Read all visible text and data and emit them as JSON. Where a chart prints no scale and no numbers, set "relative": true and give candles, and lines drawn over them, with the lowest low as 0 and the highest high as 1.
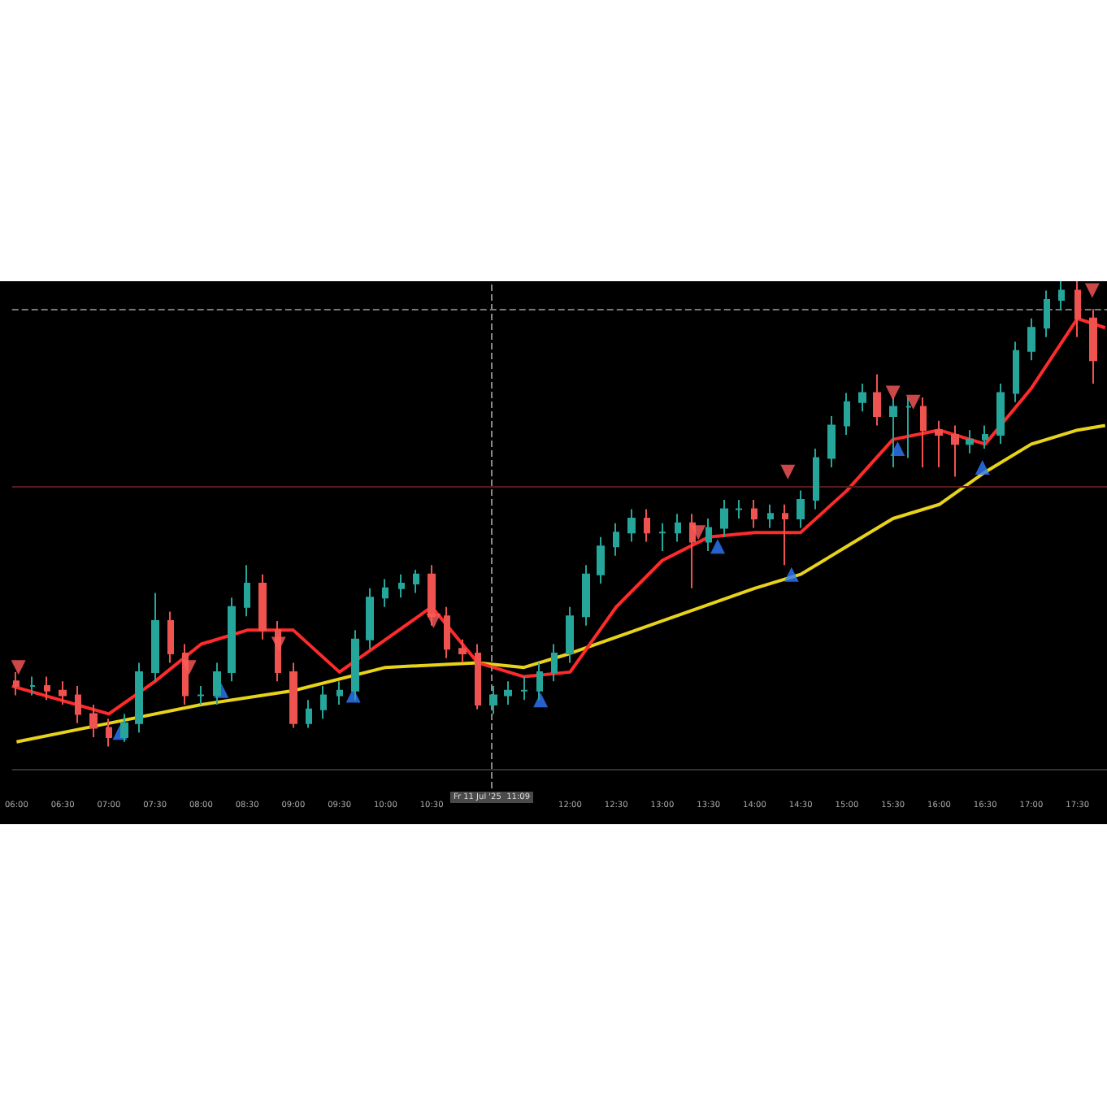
{
  "chart_data": {
    "type": "candlestick",
    "relative": true,
    "grid": false,
    "x": [
      6,
      6.17,
      6.33,
      6.5,
      6.67,
      6.83,
      7,
      7.17,
      7.33,
      7.5,
      7.67,
      7.83,
      8,
      8.17,
      8.33,
      8.5,
      8.67,
      8.83,
      9,
      9.17,
      9.33,
      9.5,
      9.67,
      9.83,
      10,
      10.17,
      10.33,
      10.5,
      10.67,
      10.83,
      11,
      11.17,
      11.33,
      11.5,
      11.67,
      11.83,
      12,
      12.17,
      12.33,
      12.5,
      12.67,
      12.83,
      13,
      13.17,
      13.33,
      13.5,
      13.67,
      13.83,
      14,
      14.17,
      14.33,
      14.5,
      14.67,
      14.83,
      15,
      15.17,
      15.33,
      15.5,
      15.67,
      15.83,
      16,
      16.17,
      16.33,
      16.5,
      16.67,
      16.83,
      17,
      17.17,
      17.33,
      17.5,
      17.67
    ],
    "ohlc": [
      [
        0.14,
        0.16,
        0.11,
        0.13
      ],
      [
        0.13,
        0.15,
        0.11,
        0.13
      ],
      [
        0.13,
        0.15,
        0.1,
        0.12
      ],
      [
        0.12,
        0.14,
        0.09,
        0.11
      ],
      [
        0.11,
        0.13,
        0.05,
        0.07
      ],
      [
        0.07,
        0.09,
        0.02,
        0.04
      ],
      [
        0.04,
        0.06,
        0,
        0.02
      ],
      [
        0.02,
        0.07,
        0.01,
        0.05
      ],
      [
        0.05,
        0.18,
        0.03,
        0.16
      ],
      [
        0.16,
        0.33,
        0.14,
        0.27
      ],
      [
        0.27,
        0.29,
        0.18,
        0.2
      ],
      [
        0.2,
        0.22,
        0.09,
        0.11
      ],
      [
        0.11,
        0.13,
        0.09,
        0.11
      ],
      [
        0.11,
        0.18,
        0.09,
        0.16
      ],
      [
        0.16,
        0.32,
        0.14,
        0.3
      ],
      [
        0.3,
        0.39,
        0.28,
        0.35
      ],
      [
        0.35,
        0.37,
        0.23,
        0.25
      ],
      [
        0.25,
        0.27,
        0.14,
        0.16
      ],
      [
        0.16,
        0.18,
        0.04,
        0.05
      ],
      [
        0.05,
        0.1,
        0.04,
        0.08
      ],
      [
        0.08,
        0.13,
        0.06,
        0.11
      ],
      [
        0.11,
        0.14,
        0.09,
        0.12
      ],
      [
        0.12,
        0.25,
        0.1,
        0.23
      ],
      [
        0.23,
        0.34,
        0.21,
        0.32
      ],
      [
        0.32,
        0.36,
        0.3,
        0.34
      ],
      [
        0.34,
        0.37,
        0.32,
        0.35
      ],
      [
        0.35,
        0.38,
        0.33,
        0.37
      ],
      [
        0.37,
        0.39,
        0.26,
        0.28
      ],
      [
        0.28,
        0.3,
        0.19,
        0.21
      ],
      [
        0.21,
        0.23,
        0.18,
        0.2
      ],
      [
        0.2,
        0.22,
        0.08,
        0.09
      ],
      [
        0.09,
        0.13,
        0.07,
        0.11
      ],
      [
        0.11,
        0.14,
        0.09,
        0.12
      ],
      [
        0.12,
        0.15,
        0.1,
        0.12
      ],
      [
        0.12,
        0.18,
        0.1,
        0.16
      ],
      [
        0.16,
        0.22,
        0.14,
        0.2
      ],
      [
        0.2,
        0.3,
        0.18,
        0.28
      ],
      [
        0.28,
        0.39,
        0.26,
        0.37
      ],
      [
        0.37,
        0.45,
        0.35,
        0.43
      ],
      [
        0.43,
        0.48,
        0.41,
        0.46
      ],
      [
        0.46,
        0.51,
        0.44,
        0.49
      ],
      [
        0.49,
        0.51,
        0.44,
        0.46
      ],
      [
        0.46,
        0.48,
        0.42,
        0.46
      ],
      [
        0.46,
        0.5,
        0.44,
        0.48
      ],
      [
        0.48,
        0.5,
        0.34,
        0.44
      ],
      [
        0.44,
        0.49,
        0.42,
        0.47
      ],
      [
        0.47,
        0.53,
        0.45,
        0.51
      ],
      [
        0.51,
        0.53,
        0.49,
        0.51
      ],
      [
        0.51,
        0.53,
        0.47,
        0.49
      ],
      [
        0.49,
        0.52,
        0.47,
        0.5
      ],
      [
        0.5,
        0.52,
        0.39,
        0.49
      ],
      [
        0.49,
        0.55,
        0.47,
        0.53
      ],
      [
        0.53,
        0.64,
        0.51,
        0.62
      ],
      [
        0.62,
        0.71,
        0.6,
        0.69
      ],
      [
        0.69,
        0.76,
        0.67,
        0.74
      ],
      [
        0.74,
        0.78,
        0.72,
        0.76
      ],
      [
        0.76,
        0.8,
        0.69,
        0.71
      ],
      [
        0.71,
        0.75,
        0.6,
        0.73
      ],
      [
        0.73,
        0.75,
        0.62,
        0.73
      ],
      [
        0.73,
        0.75,
        0.6,
        0.68
      ],
      [
        0.68,
        0.7,
        0.6,
        0.67
      ],
      [
        0.67,
        0.69,
        0.58,
        0.65
      ],
      [
        0.65,
        0.68,
        0.63,
        0.66
      ],
      [
        0.66,
        0.69,
        0.64,
        0.67
      ],
      [
        0.67,
        0.78,
        0.65,
        0.76
      ],
      [
        0.76,
        0.87,
        0.74,
        0.85
      ],
      [
        0.85,
        0.92,
        0.83,
        0.9
      ],
      [
        0.9,
        0.98,
        0.88,
        0.96
      ],
      [
        0.96,
        1,
        0.94,
        0.98
      ],
      [
        0.98,
        1,
        0.88,
        0.92
      ],
      [
        0.92,
        0.94,
        0.78,
        0.83
      ]
    ],
    "series": [
      {
        "type": "line",
        "color": "#e8d31a",
        "x": [
          6,
          7,
          8,
          9,
          10,
          11,
          11.5,
          12,
          13,
          14,
          14.5,
          15,
          15.5,
          16,
          16.5,
          17,
          17.5,
          17.8
        ],
        "values": [
          0.01,
          0.05,
          0.09,
          0.12,
          0.17,
          0.18,
          0.17,
          0.2,
          0.27,
          0.34,
          0.37,
          0.43,
          0.49,
          0.52,
          0.59,
          0.65,
          0.68,
          0.69
        ]
      },
      {
        "type": "line",
        "color": "#ff2b2b",
        "x": [
          5.95,
          7,
          7.5,
          8,
          8.5,
          9,
          9.5,
          10,
          10.5,
          11,
          11.5,
          12,
          12.5,
          13,
          13.5,
          14,
          14.5,
          15,
          15.5,
          16,
          16.5,
          17,
          17.5,
          17.8
        ],
        "values": [
          0.13,
          0.07,
          0.14,
          0.22,
          0.25,
          0.25,
          0.16,
          0.23,
          0.3,
          0.18,
          0.15,
          0.16,
          0.3,
          0.4,
          0.45,
          0.46,
          0.46,
          0.55,
          0.66,
          0.68,
          0.65,
          0.77,
          0.92,
          0.9
        ]
      },
      {
        "type": "scatter",
        "color": "#2f7bff",
        "marker": "triangle",
        "x": [
          7.12,
          8.22,
          9.65,
          11.68,
          13.6,
          14.4,
          15.55,
          16.47
        ],
        "values": [
          0.03,
          0.12,
          0.11,
          0.1,
          0.43,
          0.37,
          0.64,
          0.6
        ]
      },
      {
        "type": "scatter",
        "color": "#ff5a5a",
        "marker": "triangle-down",
        "x": [
          6.02,
          7.87,
          8.84,
          10.52,
          13.39,
          14.36,
          15.5,
          15.72,
          17.66
        ],
        "values": [
          0.17,
          0.17,
          0.22,
          0.27,
          0.46,
          0.59,
          0.76,
          0.74,
          0.98
        ]
      }
    ],
    "xlim": [
      5.95,
      17.82
    ],
    "xticks": [
      {
        "value": 6,
        "label": "06:00"
      },
      {
        "value": 6.5,
        "label": "06:30"
      },
      {
        "value": 7,
        "label": "07:00"
      },
      {
        "value": 7.5,
        "label": "07:30"
      },
      {
        "value": 8,
        "label": "08:00"
      },
      {
        "value": 8.5,
        "label": "08:30"
      },
      {
        "value": 9,
        "label": "09:00"
      },
      {
        "value": 9.5,
        "label": "09:30"
      },
      {
        "value": 10,
        "label": "10:00"
      },
      {
        "value": 10.5,
        "label": "10:30"
      },
      {
        "value": 12,
        "label": "12:00"
      },
      {
        "value": 12.5,
        "label": "12:30"
      },
      {
        "value": 13,
        "label": "13:00"
      },
      {
        "value": 13.5,
        "label": "13:30"
      },
      {
        "value": 14,
        "label": "14:00"
      },
      {
        "value": 14.5,
        "label": "14:30"
      },
      {
        "value": 15,
        "label": "15:00"
      },
      {
        "value": 15.5,
        "label": "15:30"
      },
      {
        "value": 16,
        "label": "16:00"
      },
      {
        "value": 16.5,
        "label": "16:30"
      },
      {
        "value": 17,
        "label": "17:00"
      },
      {
        "value": 17.5,
        "label": "17:30"
      }
    ],
    "ref_lines": [
      {
        "axis": "x",
        "value": 11.15,
        "label": "Fr 11 Jul '25  11:09",
        "color": "#888888",
        "line_style": "dashed"
      },
      {
        "axis": "y",
        "value": 0.94,
        "color": "#777777",
        "line_style": "dashed"
      },
      {
        "axis": "y",
        "value": 0.56,
        "color": "#5a1a1a",
        "line_style": "solid"
      },
      {
        "axis": "y",
        "value": -0.05,
        "color": "#333333",
        "line_style": "solid"
      }
    ]
  }
}
